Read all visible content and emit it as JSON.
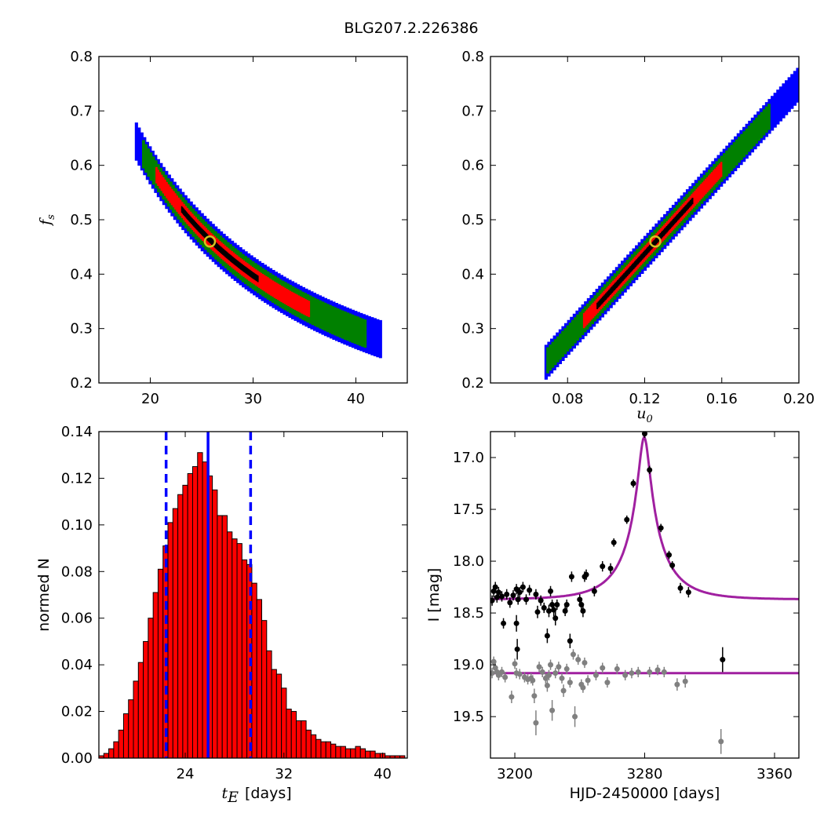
{
  "figure_title": "BLG207.2.226386",
  "chart_data": [
    {
      "id": "tE_vs_fs",
      "type": "heatmap",
      "xlabel": "",
      "ylabel": "f_s",
      "ylabel_display": "f",
      "ylabel_sub": "s",
      "xlim": [
        15,
        45
      ],
      "ylim": [
        0.2,
        0.8
      ],
      "xticks": [
        20,
        30,
        40
      ],
      "yticks": [
        0.2,
        0.3,
        0.4,
        0.5,
        0.6,
        0.7,
        0.8
      ],
      "ytick_labels": [
        "0.2",
        "0.3",
        "0.4",
        "0.5",
        "0.6",
        "0.7",
        "0.8"
      ],
      "colors": {
        "sigma3": "#0000ff",
        "sigma2": "#008000",
        "sigma1": "#ff0000",
        "core": "#000000",
        "marker": "#d4c020"
      },
      "band_model": {
        "form": "fs = A / (tE - B)",
        "A": 11.8,
        "B": 0.3
      },
      "contour_halfwidth_fs": {
        "sigma3": 0.035,
        "sigma2": 0.026,
        "sigma1": 0.015,
        "core": 0.006
      },
      "x_extent": {
        "sigma3": [
          18.5,
          42.5
        ],
        "sigma2": [
          19.2,
          41.0
        ],
        "sigma1": [
          20.5,
          35.5
        ],
        "core": [
          23.0,
          30.5
        ]
      },
      "best_fit": {
        "x": 25.8,
        "y": 0.46
      }
    },
    {
      "id": "u0_vs_fs",
      "type": "heatmap",
      "xlabel": "u_0",
      "xlabel_display": "u",
      "xlabel_sub": "0",
      "ylabel": "",
      "xlim": [
        0.04,
        0.2
      ],
      "ylim": [
        0.2,
        0.8
      ],
      "xticks": [
        0.08,
        0.12,
        0.16,
        0.2
      ],
      "xtick_labels": [
        "0.08",
        "0.12",
        "0.16",
        "0.20"
      ],
      "yticks": [
        0.2,
        0.3,
        0.4,
        0.5,
        0.6,
        0.7,
        0.8
      ],
      "ytick_labels": [
        "0.2",
        "0.3",
        "0.4",
        "0.5",
        "0.6",
        "0.7",
        "0.8"
      ],
      "colors": {
        "sigma3": "#0000ff",
        "sigma2": "#008000",
        "sigma1": "#ff0000",
        "core": "#000000",
        "marker": "#d4c020"
      },
      "band_model": {
        "form": "fs = a*u0 + b",
        "a": 3.9,
        "b": -0.03
      },
      "contour_halfwidth_fs": {
        "sigma3": 0.032,
        "sigma2": 0.024,
        "sigma1": 0.014,
        "core": 0.006
      },
      "x_extent": {
        "sigma3": [
          0.068,
          0.2
        ],
        "sigma2": [
          0.069,
          0.185
        ],
        "sigma1": [
          0.088,
          0.16
        ],
        "core": [
          0.095,
          0.145
        ]
      },
      "best_fit": {
        "x": 0.1255,
        "y": 0.46
      }
    },
    {
      "id": "tE_histogram",
      "type": "bar",
      "xlabel": "t_E [days]",
      "xlabel_display": "t",
      "xlabel_sub": "E",
      "xlabel_unit": "[days]",
      "ylabel": "normed N",
      "xlim": [
        17.0,
        42.0
      ],
      "ylim": [
        0.0,
        0.14
      ],
      "xticks": [
        24,
        32,
        40
      ],
      "yticks": [
        0.0,
        0.02,
        0.04,
        0.06,
        0.08,
        0.1,
        0.12,
        0.14
      ],
      "ytick_labels": [
        "0.00",
        "0.02",
        "0.04",
        "0.06",
        "0.08",
        "0.10",
        "0.12",
        "0.14"
      ],
      "bar_color": "#ff0000",
      "edge_color": "#000000",
      "bin_start": 17.0,
      "bin_width": 0.4,
      "values": [
        0.001,
        0.002,
        0.004,
        0.007,
        0.012,
        0.019,
        0.025,
        0.033,
        0.041,
        0.05,
        0.06,
        0.071,
        0.081,
        0.091,
        0.101,
        0.107,
        0.113,
        0.117,
        0.122,
        0.125,
        0.131,
        0.127,
        0.121,
        0.115,
        0.104,
        0.104,
        0.097,
        0.094,
        0.092,
        0.085,
        0.083,
        0.075,
        0.068,
        0.059,
        0.046,
        0.038,
        0.036,
        0.03,
        0.021,
        0.02,
        0.016,
        0.016,
        0.012,
        0.01,
        0.008,
        0.007,
        0.007,
        0.006,
        0.005,
        0.005,
        0.004,
        0.004,
        0.005,
        0.004,
        0.003,
        0.003,
        0.002,
        0.002,
        0.001,
        0.001,
        0.001,
        0.001
      ],
      "vlines": [
        {
          "x": 25.85,
          "style": "solid",
          "color": "#0000ff"
        },
        {
          "x": 22.45,
          "style": "dashed",
          "color": "#0000ff"
        },
        {
          "x": 29.3,
          "style": "dashed",
          "color": "#0000ff"
        }
      ]
    },
    {
      "id": "light_curve",
      "type": "scatter",
      "xlabel": "HJD-2450000 [days]",
      "ylabel": "I [mag]",
      "xlim": [
        3185,
        3375
      ],
      "ylim": [
        19.9,
        16.75
      ],
      "y_inverted": true,
      "xticks": [
        3200,
        3280,
        3360
      ],
      "yticks": [
        17.0,
        17.5,
        18.0,
        18.5,
        19.0,
        19.5
      ],
      "ytick_labels": [
        "17.0",
        "17.5",
        "18.0",
        "18.5",
        "19.0",
        "19.5"
      ],
      "model_color": "#a020a0",
      "model": {
        "type": "paczynski",
        "t0": 3279.7,
        "tE": 25.8,
        "u0": 0.1255,
        "fs": 0.46,
        "I_base": 18.37
      },
      "flat_model": {
        "I": 19.08
      },
      "series": [
        {
          "name": "",
          "color": "#000000",
          "points": [
            [
              3186,
              18.38,
              0.05
            ],
            [
              3187,
              18.29,
              0.06
            ],
            [
              3188,
              18.25,
              0.05
            ],
            [
              3189,
              18.35,
              0.05
            ],
            [
              3190,
              18.3,
              0.05
            ],
            [
              3192,
              18.34,
              0.05
            ],
            [
              3193,
              18.6,
              0.05
            ],
            [
              3195,
              18.32,
              0.05
            ],
            [
              3197,
              18.4,
              0.05
            ],
            [
              3199,
              18.33,
              0.05
            ],
            [
              3201,
              18.27,
              0.05
            ],
            [
              3201,
              18.6,
              0.08
            ],
            [
              3201.5,
              18.85,
              0.1
            ],
            [
              3202,
              18.37,
              0.05
            ],
            [
              3203,
              18.3,
              0.05
            ],
            [
              3205,
              18.25,
              0.05
            ],
            [
              3207,
              18.37,
              0.05
            ],
            [
              3209,
              18.28,
              0.05
            ],
            [
              3213,
              18.32,
              0.05
            ],
            [
              3214,
              18.49,
              0.06
            ],
            [
              3216,
              18.38,
              0.05
            ],
            [
              3218,
              18.45,
              0.05
            ],
            [
              3220,
              18.72,
              0.07
            ],
            [
              3221,
              18.48,
              0.06
            ],
            [
              3222,
              18.29,
              0.05
            ],
            [
              3223,
              18.42,
              0.05
            ],
            [
              3224,
              18.47,
              0.06
            ],
            [
              3225,
              18.55,
              0.07
            ],
            [
              3226,
              18.42,
              0.05
            ],
            [
              3231,
              18.48,
              0.05
            ],
            [
              3232,
              18.42,
              0.05
            ],
            [
              3234,
              18.77,
              0.07
            ],
            [
              3235,
              18.15,
              0.05
            ],
            [
              3240,
              18.37,
              0.05
            ],
            [
              3241,
              18.42,
              0.05
            ],
            [
              3242,
              18.48,
              0.06
            ],
            [
              3243,
              18.15,
              0.05
            ],
            [
              3244,
              18.13,
              0.05
            ],
            [
              3249,
              18.29,
              0.05
            ],
            [
              3254,
              18.05,
              0.05
            ],
            [
              3259,
              18.07,
              0.05
            ],
            [
              3261,
              17.82,
              0.04
            ],
            [
              3269,
              17.6,
              0.04
            ],
            [
              3273,
              17.25,
              0.04
            ],
            [
              3280,
              16.77,
              0.04
            ],
            [
              3283,
              17.12,
              0.04
            ],
            [
              3290,
              17.68,
              0.04
            ],
            [
              3295,
              17.94,
              0.04
            ],
            [
              3297,
              18.04,
              0.04
            ],
            [
              3302,
              18.26,
              0.05
            ],
            [
              3307,
              18.3,
              0.05
            ],
            [
              3328,
              18.95,
              0.12
            ]
          ]
        },
        {
          "name": "",
          "color": "#808080",
          "points": [
            [
              3186,
              19.08,
              0.05
            ],
            [
              3187,
              18.97,
              0.05
            ],
            [
              3188,
              19.03,
              0.05
            ],
            [
              3189,
              19.07,
              0.05
            ],
            [
              3190,
              19.1,
              0.05
            ],
            [
              3192,
              19.07,
              0.05
            ],
            [
              3194,
              19.12,
              0.05
            ],
            [
              3198,
              19.31,
              0.06
            ],
            [
              3200,
              18.99,
              0.05
            ],
            [
              3201,
              19.08,
              0.05
            ],
            [
              3203,
              19.09,
              0.05
            ],
            [
              3206,
              19.12,
              0.05
            ],
            [
              3208,
              19.14,
              0.05
            ],
            [
              3210,
              19.13,
              0.05
            ],
            [
              3211,
              19.15,
              0.05
            ],
            [
              3212,
              19.3,
              0.07
            ],
            [
              3213,
              19.56,
              0.12
            ],
            [
              3215,
              19.02,
              0.05
            ],
            [
              3217,
              19.07,
              0.05
            ],
            [
              3219,
              19.13,
              0.05
            ],
            [
              3220,
              19.2,
              0.06
            ],
            [
              3221,
              19.1,
              0.05
            ],
            [
              3222,
              19.0,
              0.05
            ],
            [
              3223,
              19.44,
              0.1
            ],
            [
              3225,
              19.08,
              0.05
            ],
            [
              3227,
              19.02,
              0.05
            ],
            [
              3229,
              19.13,
              0.05
            ],
            [
              3230,
              19.25,
              0.06
            ],
            [
              3232,
              19.04,
              0.05
            ],
            [
              3234,
              19.17,
              0.05
            ],
            [
              3236,
              18.9,
              0.05
            ],
            [
              3237,
              19.5,
              0.1
            ],
            [
              3239,
              18.95,
              0.05
            ],
            [
              3241,
              19.19,
              0.05
            ],
            [
              3242,
              19.22,
              0.05
            ],
            [
              3243,
              18.98,
              0.05
            ],
            [
              3245,
              19.15,
              0.05
            ],
            [
              3250,
              19.1,
              0.05
            ],
            [
              3254,
              19.03,
              0.05
            ],
            [
              3257,
              19.17,
              0.05
            ],
            [
              3263,
              19.04,
              0.05
            ],
            [
              3268,
              19.1,
              0.05
            ],
            [
              3272,
              19.08,
              0.05
            ],
            [
              3276,
              19.07,
              0.05
            ],
            [
              3283,
              19.07,
              0.05
            ],
            [
              3288,
              19.05,
              0.05
            ],
            [
              3292,
              19.07,
              0.05
            ],
            [
              3300,
              19.19,
              0.06
            ],
            [
              3305,
              19.16,
              0.06
            ],
            [
              3327,
              19.74,
              0.12
            ]
          ]
        }
      ]
    }
  ]
}
